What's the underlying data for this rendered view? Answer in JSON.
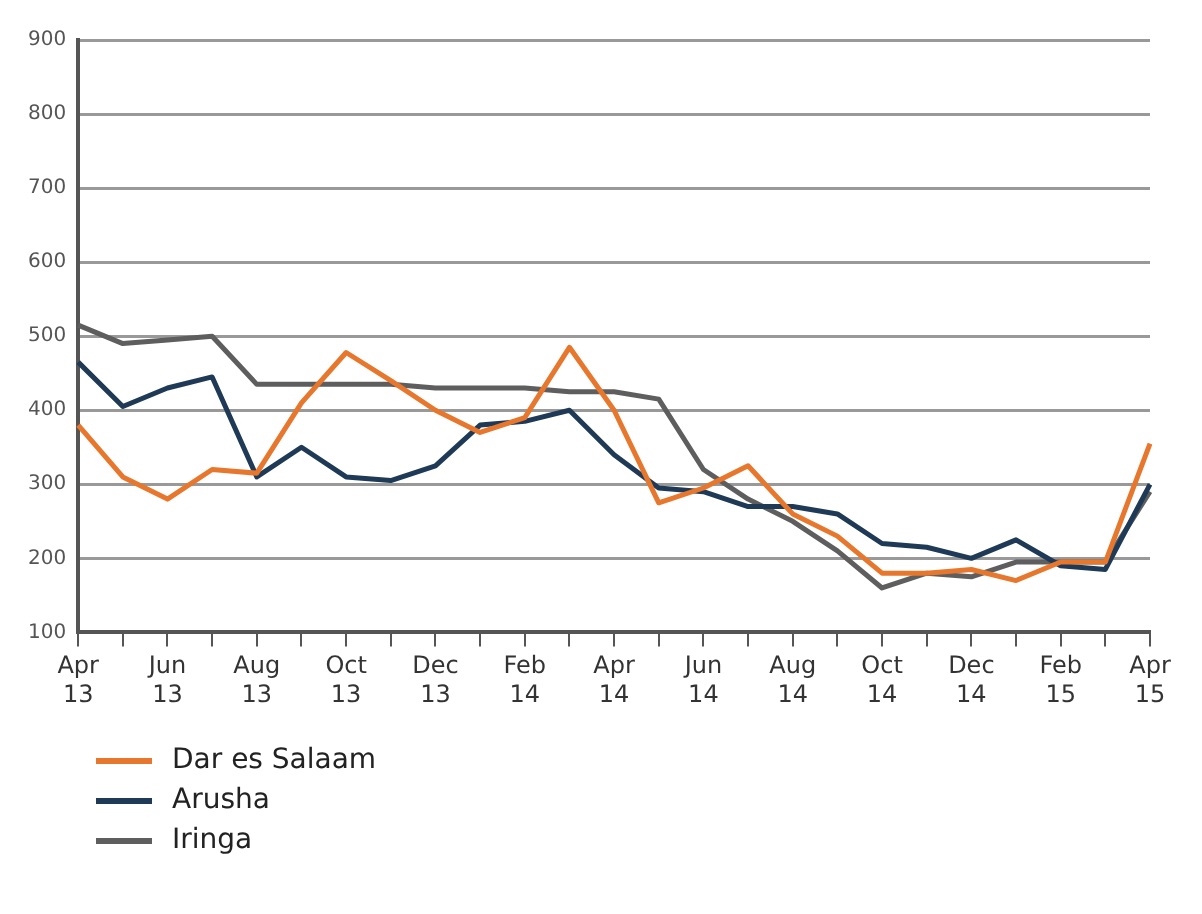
{
  "chart_data": {
    "type": "line",
    "categories": [
      "Apr 13",
      null,
      "Jun 13",
      null,
      "Aug 13",
      null,
      "Oct 13",
      null,
      "Dec 13",
      null,
      "Feb 14",
      null,
      "Apr 14",
      null,
      "Jun 14",
      null,
      "Aug 14",
      null,
      "Oct 14",
      null,
      "Dec 14",
      null,
      "Feb 15",
      null,
      "Apr 15"
    ],
    "series": [
      {
        "name": "Dar es Salaam",
        "color": "#e8772e",
        "values": [
          380,
          310,
          280,
          320,
          315,
          410,
          478,
          440,
          400,
          370,
          390,
          485,
          400,
          275,
          295,
          325,
          260,
          230,
          180,
          180,
          185,
          170,
          195,
          195,
          355
        ]
      },
      {
        "name": "Arusha",
        "color": "#1f3a56",
        "values": [
          465,
          405,
          430,
          445,
          310,
          350,
          310,
          305,
          325,
          380,
          385,
          400,
          340,
          295,
          290,
          270,
          270,
          260,
          220,
          215,
          200,
          225,
          190,
          185,
          300
        ]
      },
      {
        "name": "Iringa",
        "color": "#5e5e5e",
        "values": [
          515,
          490,
          495,
          500,
          435,
          435,
          435,
          435,
          430,
          430,
          430,
          425,
          425,
          415,
          320,
          280,
          250,
          210,
          160,
          180,
          175,
          195,
          195,
          195,
          290
        ]
      }
    ],
    "ylim": [
      100,
      900
    ],
    "yticks": [
      100,
      200,
      300,
      400,
      500,
      600,
      700,
      800,
      900
    ],
    "grid": "y",
    "legend": "bottom left",
    "marker": "none",
    "line_style": "solid"
  }
}
